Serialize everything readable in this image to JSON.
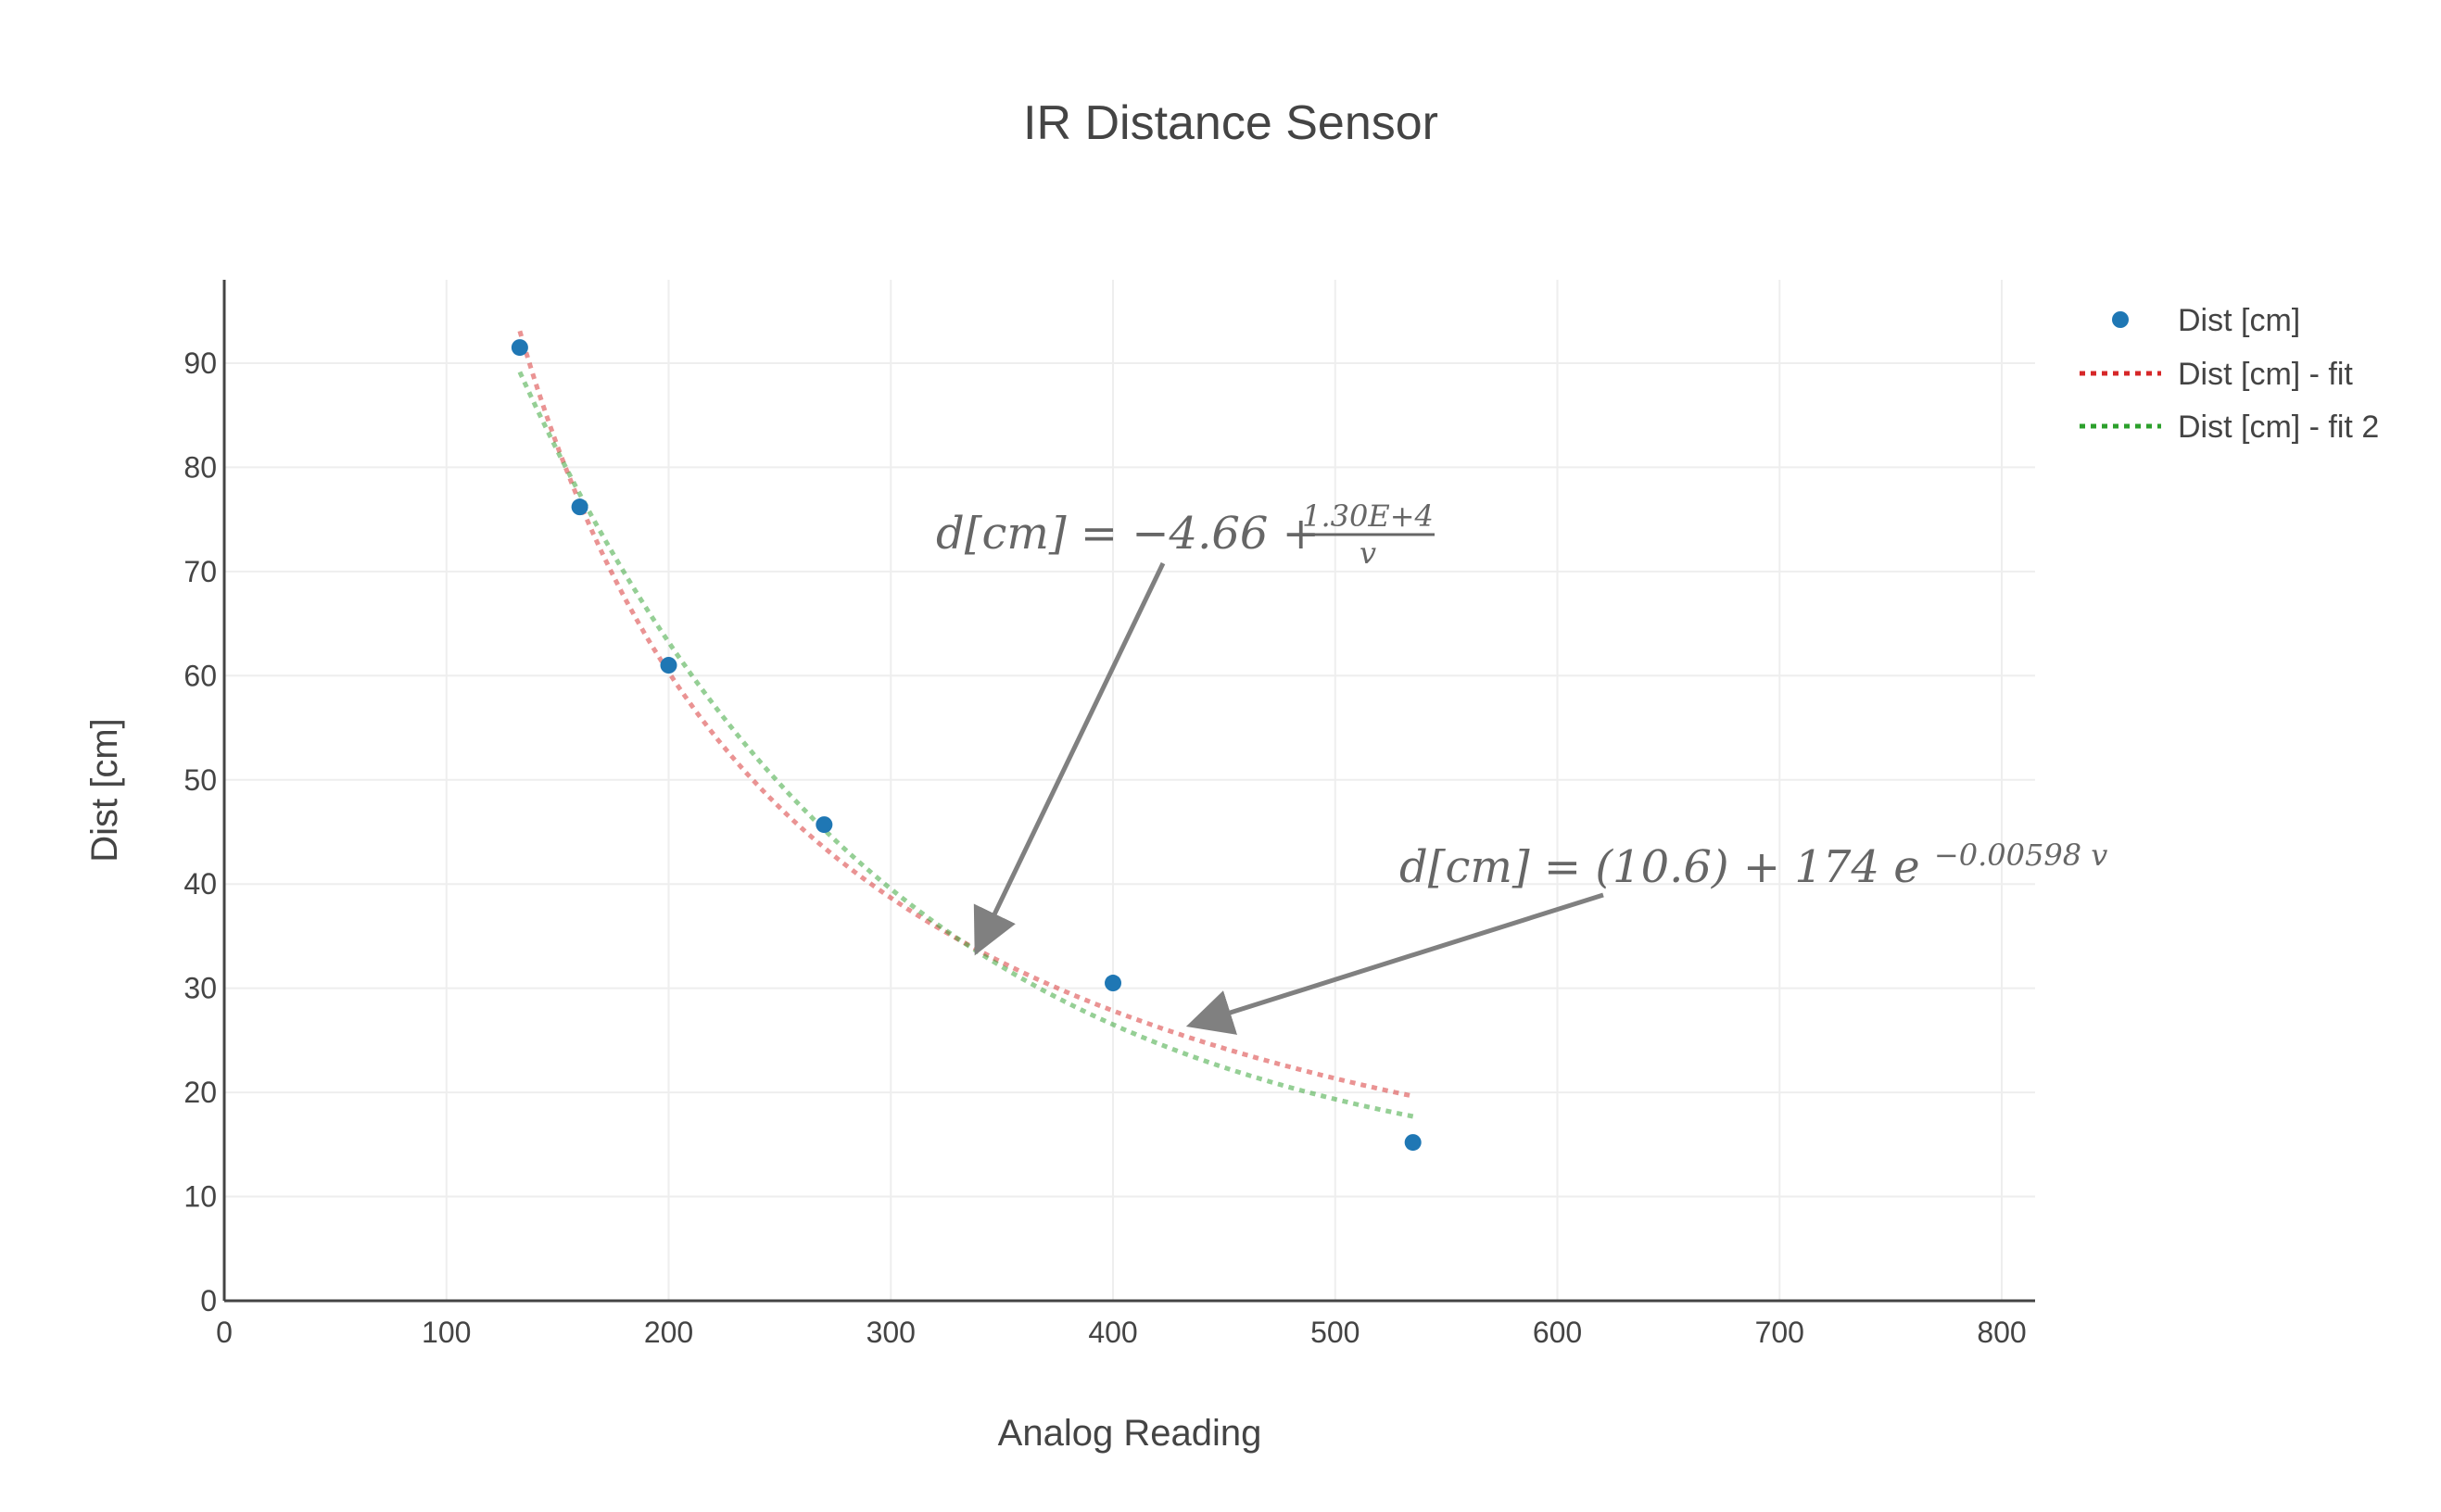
{
  "chart_data": {
    "type": "scatter",
    "title": "IR Distance Sensor",
    "xlabel": "Analog Reading",
    "ylabel": "Dist [cm]",
    "xlim": [
      0,
      815
    ],
    "ylim": [
      0,
      98
    ],
    "x_ticks": [
      0,
      100,
      200,
      300,
      400,
      500,
      600,
      700,
      800
    ],
    "y_ticks": [
      0,
      10,
      20,
      30,
      40,
      50,
      60,
      70,
      80,
      90
    ],
    "grid": true,
    "legend_position": "top-right",
    "series": [
      {
        "name": "Dist [cm]",
        "mode": "markers",
        "color": "#1f77b4",
        "x": [
          133,
          160,
          200,
          270,
          400,
          535
        ],
        "y": [
          91.5,
          76.2,
          61,
          45.7,
          30.5,
          15.2
        ]
      },
      {
        "name": "Dist [cm] - fit",
        "mode": "dotted-line",
        "color": "#d62728",
        "model": "rational",
        "x_range": [
          133,
          535
        ],
        "params": {
          "a": -4.66,
          "b": 13000
        }
      },
      {
        "name": "Dist [cm] - fit 2",
        "mode": "dotted-line",
        "color": "#2ca02c",
        "model": "exponential",
        "x_range": [
          133,
          535
        ],
        "params": {
          "c": 10.6,
          "A": 174,
          "k": -0.00598
        }
      }
    ],
    "annotations": [
      {
        "text": "d[cm] = −4.66 + 1.30E+4 / v",
        "numerator": "1.30E+4",
        "denominator": "v",
        "prefix": "d[cm] = −4.66 +",
        "arrow_to": [
          338,
          33.5
        ]
      },
      {
        "text": "d[cm] = (10.6) + 174 e^−0.00598 v",
        "base": "d[cm] = (10.6) + 174 e",
        "exponent": "−0.00598 v",
        "arrow_to": [
          435,
          26.5
        ]
      }
    ]
  }
}
